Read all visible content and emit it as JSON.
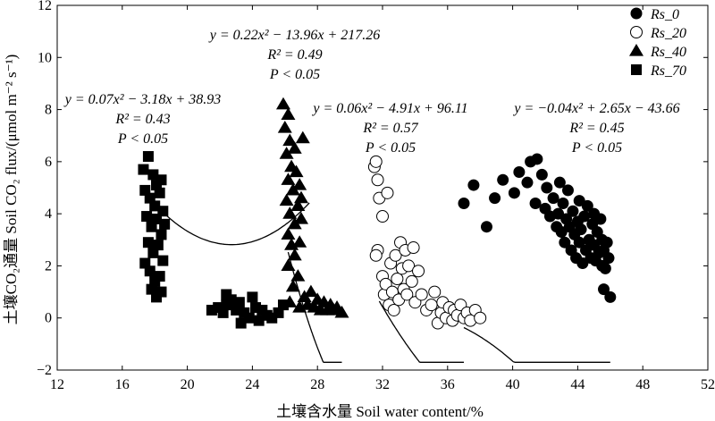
{
  "chart_data": {
    "type": "scatter",
    "xlabel": "土壤含水量 Soil water content/%",
    "ylabel": "土壤CO₂通量 Soil CO₂ flux/(μmol m⁻² s⁻¹)",
    "xlim": [
      12,
      52
    ],
    "ylim": [
      -2,
      12
    ],
    "xticks": [
      "12",
      "16",
      "20",
      "24",
      "28",
      "32",
      "36",
      "40",
      "44",
      "48",
      "52"
    ],
    "yticks": [
      "−2",
      "0",
      "2",
      "4",
      "6",
      "8",
      "10",
      "12"
    ],
    "legend_position": "top-right",
    "series": [
      {
        "name": "Rs_0",
        "marker": "filled-circle",
        "equation": "y = −0.04x² + 2.65x − 43.66",
        "r2": "R² = 0.45",
        "p": "P < 0.05",
        "fit": {
          "a": -0.04,
          "b": 2.65,
          "c": -43.66,
          "xrange": [
            37,
            46
          ]
        },
        "points": [
          [
            37,
            4.4
          ],
          [
            37.6,
            5.1
          ],
          [
            38.4,
            3.5
          ],
          [
            38.9,
            4.6
          ],
          [
            39.4,
            5.3
          ],
          [
            40.1,
            4.8
          ],
          [
            40.4,
            5.6
          ],
          [
            40.9,
            5.2
          ],
          [
            41.1,
            6.0
          ],
          [
            41.4,
            4.4
          ],
          [
            41.5,
            6.1
          ],
          [
            41.8,
            5.5
          ],
          [
            42.0,
            4.2
          ],
          [
            42.1,
            5.0
          ],
          [
            42.3,
            3.9
          ],
          [
            42.5,
            4.6
          ],
          [
            42.7,
            3.5
          ],
          [
            42.8,
            4.0
          ],
          [
            42.9,
            5.2
          ],
          [
            43.0,
            3.3
          ],
          [
            43.1,
            4.4
          ],
          [
            43.2,
            2.9
          ],
          [
            43.3,
            3.8
          ],
          [
            43.4,
            4.9
          ],
          [
            43.5,
            3.5
          ],
          [
            43.6,
            2.6
          ],
          [
            43.7,
            4.1
          ],
          [
            43.8,
            3.2
          ],
          [
            43.9,
            2.3
          ],
          [
            44.0,
            3.7
          ],
          [
            44.1,
            4.5
          ],
          [
            44.1,
            2.9
          ],
          [
            44.2,
            3.4
          ],
          [
            44.3,
            2.1
          ],
          [
            44.4,
            3.9
          ],
          [
            44.5,
            2.6
          ],
          [
            44.6,
            4.3
          ],
          [
            44.7,
            3.0
          ],
          [
            44.8,
            2.3
          ],
          [
            44.9,
            3.6
          ],
          [
            45.0,
            2.8
          ],
          [
            45.0,
            4.0
          ],
          [
            45.1,
            2.2
          ],
          [
            45.2,
            3.3
          ],
          [
            45.3,
            2.5
          ],
          [
            45.4,
            3.8
          ],
          [
            45.5,
            2.0
          ],
          [
            45.5,
            3.0
          ],
          [
            45.6,
            2.6
          ],
          [
            45.7,
            1.9
          ],
          [
            45.8,
            2.9
          ],
          [
            45.9,
            2.3
          ],
          [
            45.6,
            1.1
          ],
          [
            46.0,
            0.8
          ]
        ]
      },
      {
        "name": "Rs_20",
        "marker": "open-circle",
        "equation": "y = 0.06x² − 4.91x + 96.11",
        "r2": "R² = 0.57",
        "p": "P < 0.05",
        "fit": {
          "a": 0.06,
          "b": -4.91,
          "c": 96.11,
          "xrange": [
            31.8,
            37
          ]
        },
        "points": [
          [
            31.5,
            5.8
          ],
          [
            31.6,
            6.0
          ],
          [
            31.7,
            5.3
          ],
          [
            31.8,
            4.6
          ],
          [
            32.0,
            3.9
          ],
          [
            31.7,
            2.6
          ],
          [
            31.6,
            2.4
          ],
          [
            32.0,
            1.6
          ],
          [
            32.1,
            0.9
          ],
          [
            32.2,
            1.3
          ],
          [
            32.3,
            4.8
          ],
          [
            32.4,
            0.5
          ],
          [
            32.5,
            2.1
          ],
          [
            32.6,
            1.0
          ],
          [
            32.7,
            0.3
          ],
          [
            32.8,
            2.4
          ],
          [
            32.9,
            1.5
          ],
          [
            33.0,
            0.7
          ],
          [
            33.1,
            2.9
          ],
          [
            33.2,
            1.9
          ],
          [
            33.3,
            1.1
          ],
          [
            33.4,
            2.6
          ],
          [
            33.5,
            0.9
          ],
          [
            33.6,
            2.0
          ],
          [
            33.8,
            1.4
          ],
          [
            33.9,
            2.7
          ],
          [
            34.0,
            0.6
          ],
          [
            34.2,
            1.8
          ],
          [
            34.4,
            0.9
          ],
          [
            34.7,
            0.3
          ],
          [
            35.0,
            0.5
          ],
          [
            35.2,
            1.0
          ],
          [
            35.4,
            -0.2
          ],
          [
            35.6,
            0.2
          ],
          [
            35.7,
            0.6
          ],
          [
            35.9,
            0.0
          ],
          [
            36.1,
            0.4
          ],
          [
            36.3,
            -0.1
          ],
          [
            36.4,
            0.3
          ],
          [
            36.6,
            0.1
          ],
          [
            36.8,
            0.5
          ],
          [
            37.0,
            0.0
          ],
          [
            37.2,
            0.2
          ],
          [
            37.4,
            -0.1
          ],
          [
            37.7,
            0.3
          ],
          [
            38.0,
            0.0
          ]
        ]
      },
      {
        "name": "Rs_40",
        "marker": "filled-triangle",
        "equation": "y = 0.22x² − 13.96x + 217.26",
        "r2": "R² = 0.49",
        "p": "P < 0.05",
        "fit": {
          "a": 0.22,
          "b": -13.96,
          "c": 217.26,
          "xrange": [
            26.2,
            29.5
          ]
        },
        "points": [
          [
            25.9,
            8.2
          ],
          [
            26.2,
            7.8
          ],
          [
            26.0,
            7.3
          ],
          [
            26.3,
            6.8
          ],
          [
            26.1,
            6.3
          ],
          [
            26.4,
            5.8
          ],
          [
            26.6,
            6.5
          ],
          [
            26.2,
            5.3
          ],
          [
            26.5,
            4.9
          ],
          [
            26.1,
            4.5
          ],
          [
            26.7,
            5.6
          ],
          [
            26.3,
            4.0
          ],
          [
            26.6,
            3.6
          ],
          [
            26.2,
            3.2
          ],
          [
            26.8,
            4.3
          ],
          [
            26.4,
            2.8
          ],
          [
            26.6,
            2.4
          ],
          [
            26.2,
            2.0
          ],
          [
            26.8,
            1.6
          ],
          [
            26.5,
            1.2
          ],
          [
            26.9,
            2.9
          ],
          [
            26.3,
            0.6
          ],
          [
            27.0,
            3.8
          ],
          [
            26.9,
            0.4
          ],
          [
            27.2,
            0.8
          ],
          [
            27.4,
            0.5
          ],
          [
            27.6,
            1.0
          ],
          [
            27.8,
            0.4
          ],
          [
            28.0,
            0.7
          ],
          [
            28.2,
            0.3
          ],
          [
            28.4,
            0.6
          ],
          [
            28.6,
            0.3
          ],
          [
            28.8,
            0.5
          ],
          [
            29.0,
            0.3
          ],
          [
            29.2,
            0.4
          ],
          [
            29.5,
            0.2
          ],
          [
            27.1,
            6.9
          ],
          [
            26.9,
            5.1
          ],
          [
            27.0,
            4.6
          ]
        ]
      },
      {
        "name": "Rs_70",
        "marker": "filled-square",
        "equation": "y = 0.07x² − 3.18x + 38.93",
        "r2": "R² = 0.43",
        "p": "P < 0.05",
        "fit": {
          "a": 0.07,
          "b": -3.18,
          "c": 38.93,
          "xrange": [
            17.3,
            27.5
          ]
        },
        "points": [
          [
            17.3,
            5.7
          ],
          [
            17.6,
            6.2
          ],
          [
            17.9,
            5.5
          ],
          [
            18.1,
            5.1
          ],
          [
            18.4,
            5.3
          ],
          [
            17.4,
            4.9
          ],
          [
            17.7,
            4.6
          ],
          [
            18.0,
            4.3
          ],
          [
            18.3,
            4.8
          ],
          [
            18.5,
            4.1
          ],
          [
            17.5,
            3.9
          ],
          [
            17.8,
            3.5
          ],
          [
            18.1,
            3.8
          ],
          [
            18.4,
            3.2
          ],
          [
            18.6,
            3.6
          ],
          [
            17.6,
            2.9
          ],
          [
            17.9,
            2.5
          ],
          [
            18.2,
            2.8
          ],
          [
            18.5,
            2.2
          ],
          [
            17.4,
            2.1
          ],
          [
            17.7,
            1.8
          ],
          [
            18.0,
            1.4
          ],
          [
            18.3,
            1.6
          ],
          [
            17.8,
            1.1
          ],
          [
            18.1,
            0.8
          ],
          [
            18.4,
            1.0
          ],
          [
            21.5,
            0.3
          ],
          [
            21.9,
            0.4
          ],
          [
            22.2,
            0.2
          ],
          [
            22.4,
            0.5
          ],
          [
            22.7,
            0.7
          ],
          [
            23.0,
            0.3
          ],
          [
            23.2,
            0.6
          ],
          [
            23.5,
            0.2
          ],
          [
            23.8,
            0.0
          ],
          [
            24.0,
            0.8
          ],
          [
            24.2,
            0.4
          ],
          [
            24.6,
            0.3
          ],
          [
            24.9,
            0.1
          ],
          [
            25.2,
            0.0
          ],
          [
            25.6,
            0.2
          ],
          [
            25.9,
            0.5
          ],
          [
            23.3,
            -0.2
          ],
          [
            24.4,
            -0.1
          ],
          [
            22.4,
            0.9
          ]
        ]
      }
    ]
  }
}
